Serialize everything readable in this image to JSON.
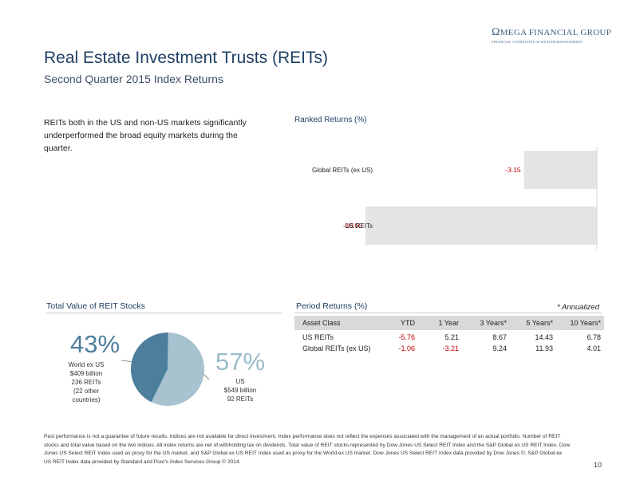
{
  "logo": {
    "omega": "Ω",
    "name": "MEGA FINANCIAL GROUP",
    "tagline": "FINANCIAL CONSULTING & WEALTH MANAGEMENT"
  },
  "title": "Real Estate Investment Trusts (REITs)",
  "subtitle": "Second Quarter 2015 Index Returns",
  "intro": "REITs both in the US and non-US markets significantly underperformed the broad equity markets during the quarter.",
  "ranked_returns": {
    "label": "Ranked Returns (%)"
  },
  "total_value": {
    "label": "Total Value of REIT Stocks",
    "left_pct": "43%",
    "left_caption": [
      "World ex US",
      "$409 billion",
      "236 REITs",
      "(22 other",
      "countries)"
    ],
    "right_pct": "57%",
    "right_caption": [
      "US",
      "$549 billion",
      "92 REITs"
    ],
    "colors": {
      "world": "#4d7e9c",
      "us": "#a8c3cf"
    }
  },
  "period_returns": {
    "label": "Period Returns (%)",
    "annualized_note": "* Annualized",
    "headers": [
      "Asset Class",
      "YTD",
      "1 Year",
      "3 Years*",
      "5 Years*",
      "10 Years*"
    ],
    "rows": [
      [
        "US REITs",
        "-5.76",
        "5.21",
        "8.67",
        "14.43",
        "6.78"
      ],
      [
        "Global REITs (ex US)",
        "-1.06",
        "-3.21",
        "9.24",
        "11.93",
        "4.01"
      ]
    ]
  },
  "chart_data": {
    "type": "bar",
    "title": "Ranked Returns (%)",
    "orientation": "horizontal",
    "categories": [
      "Global REITs (ex US)",
      "US REITs"
    ],
    "values": [
      -3.15,
      -10.0
    ],
    "value_labels": [
      "-3.15",
      "-10.00"
    ],
    "xlim": [
      -13.1,
      0
    ],
    "bar_color": "#e4e4e4",
    "label_color": "#c00000"
  },
  "footnote": "Past performance is not a guarantee of future results. Indices are not available for direct investment. Index performance does not reflect the expenses associated with the management of an actual portfolio. Number of REIT stocks and total value based on the two indices. All index returns are net of withholding tax on dividends. Total value of REIT stocks represented by Dow Jones US Select REIT Index and the S&P Global ex US REIT Index. Dow Jones US Select REIT Index used as proxy for the US market, and S&P Global ex US REIT Index used as proxy for the World ex US market. Dow Jones US Select REIT Index data provided by Dow Jones ©. S&P Global ex US REIT Index data provided by Standard and Poor's Index Services Group © 2014.",
  "page_number": "10"
}
